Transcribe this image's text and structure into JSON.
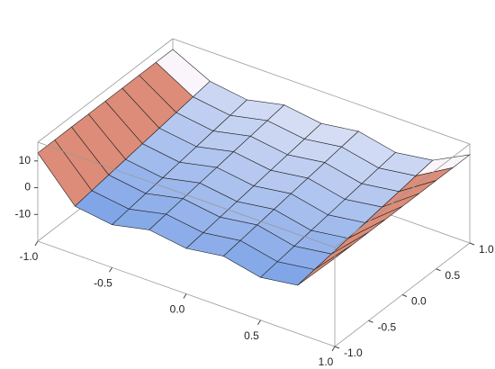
{
  "chart_data": {
    "type": "surface",
    "x": [
      -1,
      -0.75,
      -0.5,
      -0.25,
      0,
      0.25,
      0.5,
      0.75,
      1
    ],
    "y": [
      -1,
      -0.75,
      -0.5,
      -0.25,
      0,
      0.25,
      0.5,
      0.75,
      1
    ],
    "z": [
      [
        13,
        -2,
        -4,
        -1,
        -3,
        -1,
        -4,
        -2,
        13
      ],
      [
        13,
        -1,
        -3,
        0,
        -2,
        0,
        -3,
        -1,
        13
      ],
      [
        13,
        0,
        -2,
        1,
        -1,
        1,
        -2,
        0,
        13
      ],
      [
        13,
        1,
        -1,
        2,
        0,
        2,
        -1,
        1,
        13
      ],
      [
        13,
        2,
        0,
        3,
        1,
        3,
        0,
        2,
        13
      ],
      [
        13,
        3,
        1,
        4,
        2,
        4,
        1,
        3,
        13
      ],
      [
        13,
        4,
        2,
        5,
        3,
        5,
        2,
        4,
        13
      ],
      [
        13,
        5,
        3,
        6,
        4,
        6,
        3,
        5,
        13
      ],
      [
        13,
        6,
        4,
        7,
        5,
        7,
        4,
        6,
        13
      ]
    ],
    "xlim": [
      -1,
      1
    ],
    "ylim": [
      -1,
      1
    ],
    "zlim": [
      -20,
      17
    ],
    "xticks": [
      {
        "value": -0.5,
        "label": "-0.5"
      },
      {
        "value": 0,
        "label": "0.0"
      },
      {
        "value": 0.5,
        "label": "0.5"
      },
      {
        "value": 1,
        "label": "1.0"
      }
    ],
    "yticks": [
      {
        "value": -1,
        "label": "-1.0"
      },
      {
        "value": -0.5,
        "label": "-0.5"
      },
      {
        "value": 0,
        "label": "0.0"
      },
      {
        "value": 0.5,
        "label": "0.5"
      },
      {
        "value": 1,
        "label": "1.0"
      }
    ],
    "zticks": [
      -10,
      0,
      10
    ],
    "extra_xtick": {
      "value": -1,
      "label": "-1.0"
    },
    "color": "#7fa6e8"
  }
}
